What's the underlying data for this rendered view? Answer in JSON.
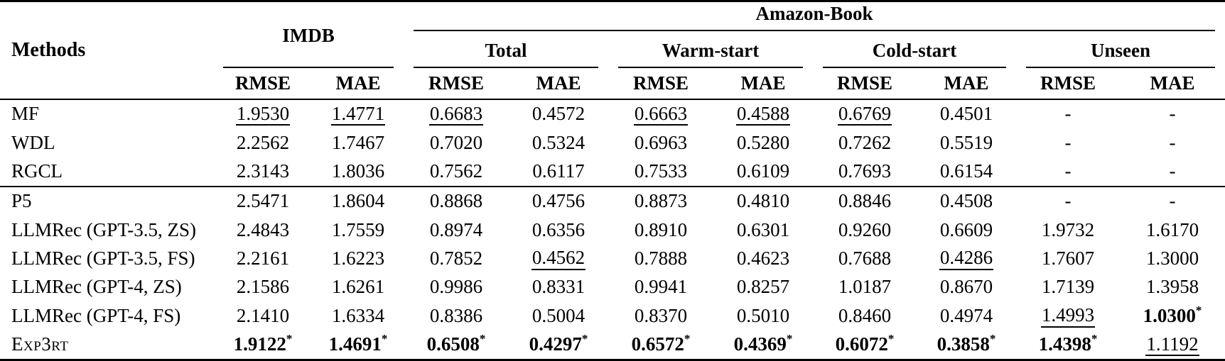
{
  "header": {
    "methods": "Methods",
    "dataset_imdb": "IMDB",
    "dataset_amazon": "Amazon-Book",
    "groups": [
      "Total",
      "Warm-start",
      "Cold-start",
      "Unseen"
    ],
    "metric_rmse": "RMSE",
    "metric_mae": "MAE"
  },
  "marks": {
    "star": "*",
    "missing": "-"
  },
  "rows": [
    {
      "method": "MF",
      "smallcaps": false,
      "section_start": false,
      "cells": [
        {
          "v": "1.9530",
          "u": true
        },
        {
          "v": "1.4771",
          "u": true
        },
        {
          "v": "0.6683",
          "u": true
        },
        {
          "v": "0.4572"
        },
        {
          "v": "0.6663",
          "u": true
        },
        {
          "v": "0.4588",
          "u": true
        },
        {
          "v": "0.6769",
          "u": true
        },
        {
          "v": "0.4501"
        },
        {
          "v": "-"
        },
        {
          "v": "-"
        }
      ]
    },
    {
      "method": "WDL",
      "smallcaps": false,
      "section_start": false,
      "cells": [
        {
          "v": "2.2562"
        },
        {
          "v": "1.7467"
        },
        {
          "v": "0.7020"
        },
        {
          "v": "0.5324"
        },
        {
          "v": "0.6963"
        },
        {
          "v": "0.5280"
        },
        {
          "v": "0.7262"
        },
        {
          "v": "0.5519"
        },
        {
          "v": "-"
        },
        {
          "v": "-"
        }
      ]
    },
    {
      "method": "RGCL",
      "smallcaps": false,
      "section_start": false,
      "cells": [
        {
          "v": "2.3143"
        },
        {
          "v": "1.8036"
        },
        {
          "v": "0.7562"
        },
        {
          "v": "0.6117"
        },
        {
          "v": "0.7533"
        },
        {
          "v": "0.6109"
        },
        {
          "v": "0.7693"
        },
        {
          "v": "0.6154"
        },
        {
          "v": "-"
        },
        {
          "v": "-"
        }
      ]
    },
    {
      "method": "P5",
      "smallcaps": false,
      "section_start": true,
      "cells": [
        {
          "v": "2.5471"
        },
        {
          "v": "1.8604"
        },
        {
          "v": "0.8868"
        },
        {
          "v": "0.4756"
        },
        {
          "v": "0.8873"
        },
        {
          "v": "0.4810"
        },
        {
          "v": "0.8846"
        },
        {
          "v": "0.4508"
        },
        {
          "v": "-"
        },
        {
          "v": "-"
        }
      ]
    },
    {
      "method": "LLMRec (GPT-3.5, ZS)",
      "smallcaps": false,
      "section_start": false,
      "cells": [
        {
          "v": "2.4843"
        },
        {
          "v": "1.7559"
        },
        {
          "v": "0.8974"
        },
        {
          "v": "0.6356"
        },
        {
          "v": "0.8910"
        },
        {
          "v": "0.6301"
        },
        {
          "v": "0.9260"
        },
        {
          "v": "0.6609"
        },
        {
          "v": "1.9732"
        },
        {
          "v": "1.6170"
        }
      ]
    },
    {
      "method": "LLMRec (GPT-3.5, FS)",
      "smallcaps": false,
      "section_start": false,
      "cells": [
        {
          "v": "2.2161"
        },
        {
          "v": "1.6223"
        },
        {
          "v": "0.7852"
        },
        {
          "v": "0.4562",
          "u": true
        },
        {
          "v": "0.7888"
        },
        {
          "v": "0.4623"
        },
        {
          "v": "0.7688"
        },
        {
          "v": "0.4286",
          "u": true
        },
        {
          "v": "1.7607"
        },
        {
          "v": "1.3000"
        }
      ]
    },
    {
      "method": "LLMRec (GPT-4, ZS)",
      "smallcaps": false,
      "section_start": false,
      "cells": [
        {
          "v": "2.1586"
        },
        {
          "v": "1.6261"
        },
        {
          "v": "0.9986"
        },
        {
          "v": "0.8331"
        },
        {
          "v": "0.9941"
        },
        {
          "v": "0.8257"
        },
        {
          "v": "1.0187"
        },
        {
          "v": "0.8670"
        },
        {
          "v": "1.7139"
        },
        {
          "v": "1.3958"
        }
      ]
    },
    {
      "method": "LLMRec (GPT-4, FS)",
      "smallcaps": false,
      "section_start": false,
      "cells": [
        {
          "v": "2.1410"
        },
        {
          "v": "1.6334"
        },
        {
          "v": "0.8386"
        },
        {
          "v": "0.5004"
        },
        {
          "v": "0.8370"
        },
        {
          "v": "0.5010"
        },
        {
          "v": "0.8460"
        },
        {
          "v": "0.4974"
        },
        {
          "v": "1.4993",
          "u": true
        },
        {
          "v": "1.0300",
          "b": true,
          "s": true
        }
      ]
    },
    {
      "method": "Exp3rt",
      "smallcaps": true,
      "section_start": false,
      "cells": [
        {
          "v": "1.9122",
          "b": true,
          "s": true
        },
        {
          "v": "1.4691",
          "b": true,
          "s": true
        },
        {
          "v": "0.6508",
          "b": true,
          "s": true
        },
        {
          "v": "0.4297",
          "b": true,
          "s": true
        },
        {
          "v": "0.6572",
          "b": true,
          "s": true
        },
        {
          "v": "0.4369",
          "b": true,
          "s": true
        },
        {
          "v": "0.6072",
          "b": true,
          "s": true
        },
        {
          "v": "0.3858",
          "b": true,
          "s": true
        },
        {
          "v": "1.4398",
          "b": true,
          "s": true
        },
        {
          "v": "1.1192",
          "u": true
        }
      ]
    }
  ]
}
